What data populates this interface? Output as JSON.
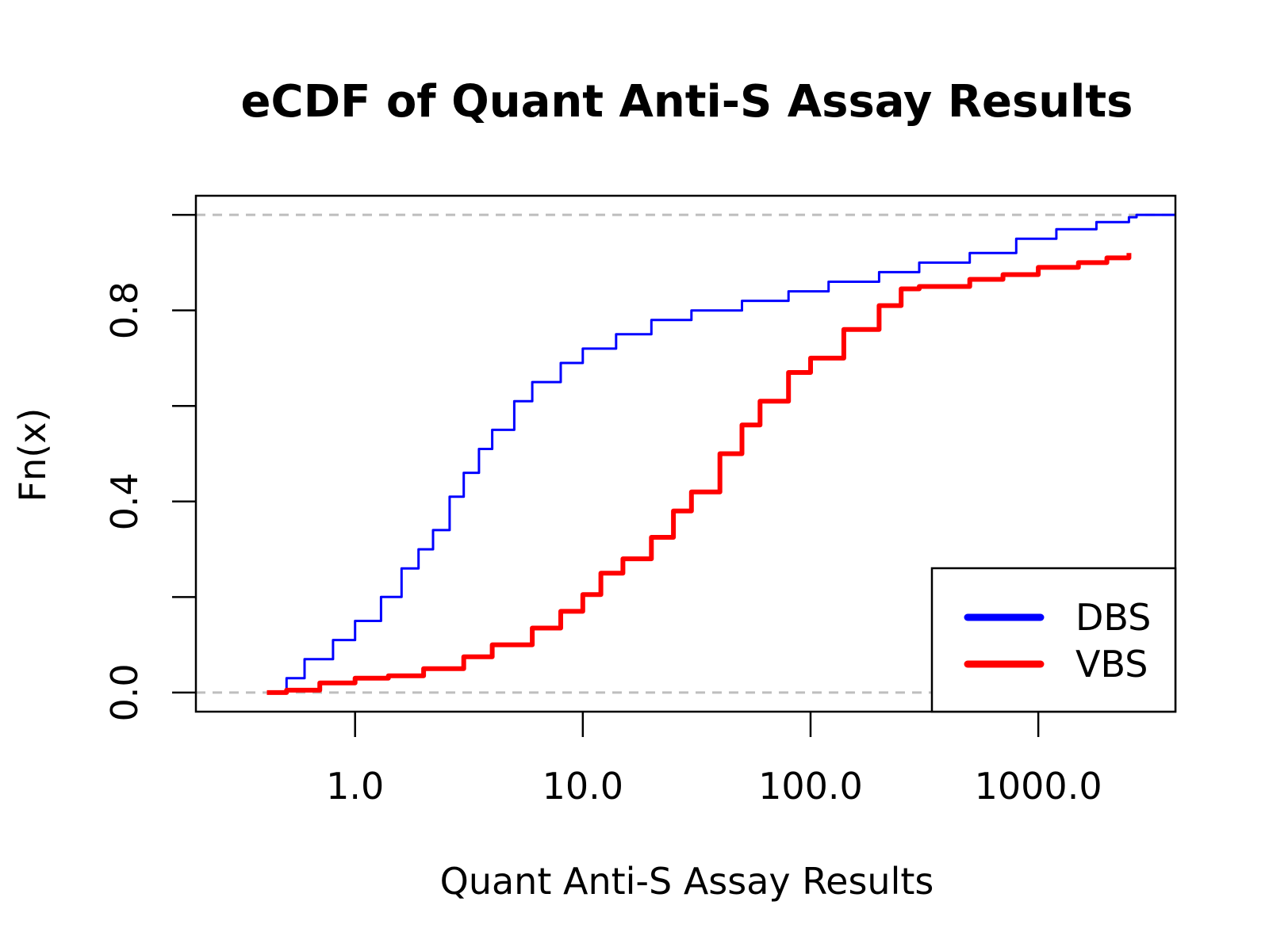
{
  "chart_data": {
    "type": "line",
    "title": "eCDF of Quant Anti-S Assay Results",
    "xlabel": "Quant Anti-S Assay Results",
    "ylabel": "Fn(x)",
    "x_scale": "log10",
    "xlim": [
      0.2,
      4000
    ],
    "ylim": [
      -0.04,
      1.04
    ],
    "x_ticks": [
      1,
      10,
      100,
      1000
    ],
    "x_tick_labels": [
      "1.0",
      "10.0",
      "100.0",
      "1000.0"
    ],
    "y_ticks": [
      0,
      0.2,
      0.4,
      0.6,
      0.8,
      1.0
    ],
    "y_tick_labels": [
      "0.0",
      "",
      "0.4",
      "",
      "0.8",
      ""
    ],
    "reference_lines_y": [
      0,
      1
    ],
    "legend_position": "bottom-right",
    "series": [
      {
        "name": "DBS",
        "color": "#0000ff",
        "x": [
          0.41,
          0.5,
          0.6,
          0.8,
          1.0,
          1.3,
          1.6,
          1.9,
          2.2,
          2.6,
          3.0,
          3.5,
          4.0,
          5.0,
          6.0,
          8.0,
          10.0,
          14.0,
          20.0,
          30.0,
          50.0,
          80.0,
          120.0,
          200.0,
          300.0,
          500.0,
          800.0,
          1200.0,
          1800.0,
          2500.0,
          2700.0,
          4000.0
        ],
        "y": [
          0.0,
          0.03,
          0.07,
          0.11,
          0.15,
          0.2,
          0.26,
          0.3,
          0.34,
          0.41,
          0.46,
          0.51,
          0.55,
          0.61,
          0.65,
          0.69,
          0.72,
          0.75,
          0.78,
          0.8,
          0.82,
          0.84,
          0.86,
          0.88,
          0.9,
          0.92,
          0.95,
          0.97,
          0.985,
          0.995,
          1.0,
          1.0
        ]
      },
      {
        "name": "VBS",
        "color": "#ff0000",
        "x": [
          0.41,
          0.5,
          0.7,
          1.0,
          1.4,
          2.0,
          3.0,
          4.0,
          6.0,
          8.0,
          10.0,
          12.0,
          15.0,
          20.0,
          25.0,
          30.0,
          40.0,
          50.0,
          60.0,
          80.0,
          100.0,
          140.0,
          200.0,
          250.0,
          300.0,
          500.0,
          700.0,
          1000.0,
          1500.0,
          2000.0,
          2500.0
        ],
        "y": [
          0.0,
          0.005,
          0.02,
          0.03,
          0.035,
          0.05,
          0.075,
          0.1,
          0.135,
          0.17,
          0.205,
          0.25,
          0.28,
          0.325,
          0.38,
          0.42,
          0.5,
          0.56,
          0.61,
          0.67,
          0.7,
          0.76,
          0.81,
          0.845,
          0.85,
          0.865,
          0.875,
          0.89,
          0.9,
          0.91,
          0.92
        ]
      }
    ]
  }
}
